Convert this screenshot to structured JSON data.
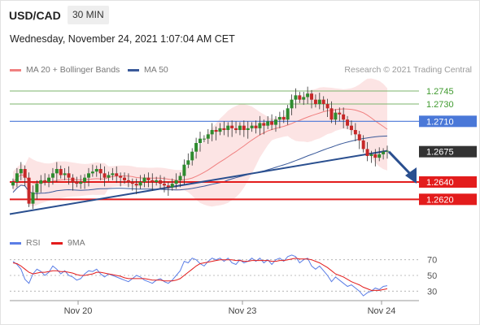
{
  "header": {
    "pair": "USD/CAD",
    "timeframe": "30 MIN",
    "datetime": "Wednesday, November 24, 2021 1:07:04 AM CET"
  },
  "legend": {
    "ma20_label": "MA 20 + Bollinger Bands",
    "ma50_label": "MA 50",
    "credit": "Research © 2021 Trading Central",
    "rsi_label": "RSI",
    "rsi_ma_label": "9MA"
  },
  "colors": {
    "up": "#2e8b2e",
    "down": "#c62828",
    "ma20": "#f08080",
    "band_fill": "#fbd9d9",
    "ma50": "#3a5a9a",
    "trend": "#2a4f8f",
    "resistance": "#7bb66b",
    "pivot": "#4a78d8",
    "support": "#e31c1c",
    "current": "#333333",
    "rsi": "#5b7ee6",
    "rsi_ma": "#e31c1c"
  },
  "chart_data": {
    "type": "candlestick",
    "x_labels": [
      "Nov 20",
      "Nov 23",
      "Nov 24"
    ],
    "ylim": [
      1.258,
      1.276
    ],
    "levels": [
      {
        "name": "resistance-2",
        "value": 1.2745,
        "label": "1.2745",
        "kind": "resistance"
      },
      {
        "name": "resistance-1",
        "value": 1.273,
        "label": "1.2730",
        "kind": "resistance"
      },
      {
        "name": "pivot",
        "value": 1.271,
        "label": "1.2710",
        "kind": "pivot"
      },
      {
        "name": "current",
        "value": 1.2675,
        "label": "1.2675",
        "kind": "current"
      },
      {
        "name": "support-1",
        "value": 1.264,
        "label": "1.2640",
        "kind": "support"
      },
      {
        "name": "support-2",
        "value": 1.262,
        "label": "1.2620",
        "kind": "support"
      }
    ],
    "close": [
      1.264,
      1.265,
      1.2655,
      1.2645,
      1.2615,
      1.2628,
      1.2638,
      1.2642,
      1.264,
      1.2645,
      1.265,
      1.2655,
      1.2648,
      1.265,
      1.2645,
      1.264,
      1.2638,
      1.264,
      1.2645,
      1.265,
      1.2652,
      1.2655,
      1.265,
      1.2645,
      1.2648,
      1.265,
      1.2647,
      1.2645,
      1.2642,
      1.264,
      1.2638,
      1.2636,
      1.264,
      1.2645,
      1.2642,
      1.264,
      1.2642,
      1.2638,
      1.2636,
      1.2634,
      1.2638,
      1.2642,
      1.2647,
      1.266,
      1.2665,
      1.2675,
      1.2685,
      1.269,
      1.269,
      1.2695,
      1.27,
      1.2698,
      1.2702,
      1.27,
      1.2705,
      1.2702,
      1.27,
      1.2705,
      1.27,
      1.2702,
      1.2705,
      1.2702,
      1.2708,
      1.2705,
      1.271,
      1.2706,
      1.2712,
      1.2715,
      1.2712,
      1.2725,
      1.2735,
      1.274,
      1.2735,
      1.2738,
      1.2742,
      1.2735,
      1.273,
      1.2735,
      1.273,
      1.2725,
      1.2712,
      1.272,
      1.2718,
      1.2712,
      1.2705,
      1.27,
      1.2695,
      1.2688,
      1.2678,
      1.267,
      1.2672,
      1.2668,
      1.2672,
      1.2675,
      1.2676
    ],
    "rsi": {
      "ylim": [
        20,
        80
      ],
      "ticks": [
        70,
        50,
        30
      ],
      "rsi": [
        68,
        64,
        58,
        45,
        40,
        52,
        58,
        55,
        50,
        54,
        62,
        58,
        52,
        56,
        50,
        48,
        44,
        46,
        52,
        56,
        55,
        58,
        52,
        48,
        52,
        50,
        48,
        46,
        44,
        42,
        46,
        50,
        48,
        44,
        42,
        40,
        44,
        46,
        42,
        40,
        44,
        50,
        56,
        68,
        66,
        72,
        70,
        65,
        62,
        68,
        72,
        70,
        72,
        68,
        72,
        66,
        64,
        70,
        66,
        68,
        72,
        68,
        72,
        66,
        70,
        64,
        70,
        72,
        68,
        74,
        76,
        74,
        66,
        70,
        72,
        62,
        58,
        62,
        56,
        50,
        42,
        48,
        44,
        40,
        36,
        38,
        34,
        30,
        24,
        28,
        30,
        34,
        32,
        36,
        37
      ],
      "ma": [
        66,
        65,
        62,
        58,
        54,
        52,
        53,
        54,
        54,
        55,
        56,
        56,
        55,
        55,
        54,
        53,
        51,
        50,
        50,
        51,
        52,
        54,
        54,
        53,
        52,
        51,
        50,
        49,
        47,
        46,
        46,
        46,
        46,
        46,
        45,
        44,
        44,
        44,
        43,
        43,
        43,
        44,
        46,
        50,
        54,
        58,
        62,
        65,
        66,
        67,
        68,
        69,
        70,
        70,
        70,
        70,
        69,
        69,
        68,
        68,
        69,
        69,
        69,
        69,
        69,
        68,
        68,
        69,
        69,
        70,
        71,
        72,
        71,
        71,
        71,
        70,
        68,
        66,
        63,
        60,
        56,
        52,
        50,
        48,
        45,
        42,
        40,
        38,
        35,
        33,
        31,
        31,
        31,
        32,
        33
      ]
    }
  }
}
